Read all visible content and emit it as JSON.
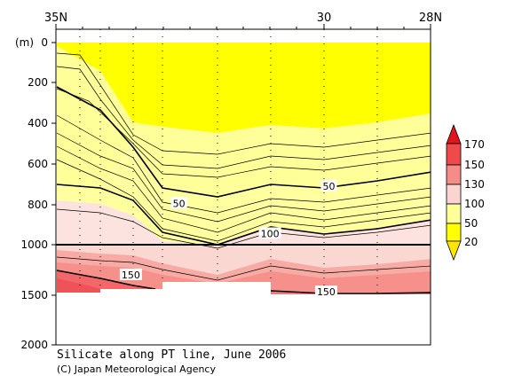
{
  "chart_data": {
    "type": "heatmap",
    "title": "Silicate along PT line, June 2006",
    "credit": "(C) Japan Meteorological Agency",
    "ylabel": "(m)",
    "x_ticks": [
      "35N",
      "30",
      "28N"
    ],
    "x_tick_values": [
      35,
      30,
      28
    ],
    "xlim": [
      35,
      28
    ],
    "y_ticks": [
      "0",
      "200",
      "400",
      "600",
      "800",
      "1000",
      "1500",
      "2000"
    ],
    "y_tick_values": [
      0,
      200,
      400,
      600,
      800,
      1000,
      1500,
      2000
    ],
    "y_axis_break_depth": 1000,
    "colorbar": {
      "labels": [
        "170",
        "150",
        "130",
        "100",
        "50",
        "20"
      ],
      "levels": [
        170,
        150,
        130,
        100,
        50,
        20
      ],
      "colors": [
        "#e8262f",
        "#f3676b",
        "#f8aba5",
        "#fbe0de",
        "#ffff99",
        "#ffff00"
      ]
    },
    "contour_labels": [
      {
        "text": "50",
        "value": 50,
        "lat": 32.7,
        "depth": 795
      },
      {
        "text": "50",
        "value": 50,
        "lat": 29.9,
        "depth": 710
      },
      {
        "text": "100",
        "value": 100,
        "lat": 31.0,
        "depth": 945
      },
      {
        "text": "150",
        "value": 150,
        "lat": 33.6,
        "depth": 1300
      },
      {
        "text": "150",
        "value": 150,
        "lat": 29.95,
        "depth": 1470
      }
    ],
    "station_latitudes": [
      34.8,
      34.1,
      33.5,
      33.0,
      32.0,
      31.2,
      30.0,
      28.0
    ]
  }
}
